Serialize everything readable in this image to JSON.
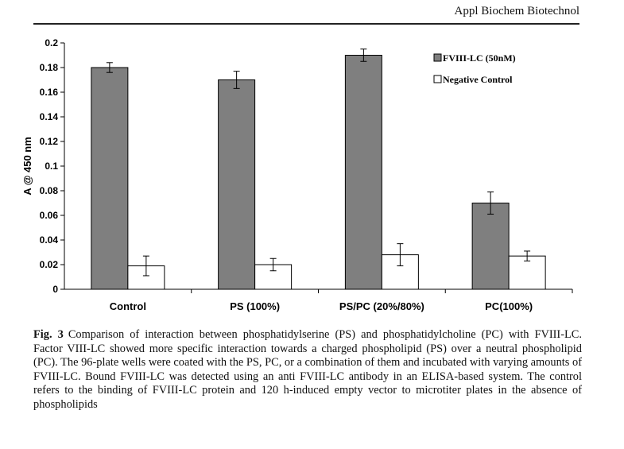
{
  "header": {
    "running_head": "Appl Biochem Biotechnol"
  },
  "chart_data": {
    "type": "bar",
    "categories": [
      "Control",
      "PS (100%)",
      "PS/PC (20%/80%)",
      "PC(100%)"
    ],
    "series": [
      {
        "name": "FVIII-LC (50nM)",
        "values": [
          0.18,
          0.17,
          0.19,
          0.07
        ],
        "errors": [
          0.004,
          0.007,
          0.005,
          0.009
        ],
        "color": "#7f7f7f"
      },
      {
        "name": "Negative Control",
        "values": [
          0.019,
          0.02,
          0.028,
          0.027
        ],
        "errors": [
          0.008,
          0.005,
          0.009,
          0.004
        ],
        "color": "#ffffff"
      }
    ],
    "xlabel": "",
    "ylabel": "A @ 450 nm",
    "ylim": [
      0,
      0.2
    ],
    "yticks": [
      "0",
      "0.02",
      "0.04",
      "0.06",
      "0.08",
      "0.1",
      "0.12",
      "0.14",
      "0.16",
      "0.18",
      "0.2"
    ],
    "grid": false,
    "legend_position": "top-right"
  },
  "caption": {
    "label": "Fig. 3",
    "text": "Comparison of interaction between phosphatidylserine (PS) and phosphatidylcholine (PC) with FVIII-LC. Factor VIII-LC showed more specific interaction towards a charged phospholipid (PS) over a neutral phospholipid (PC). The 96-plate wells were coated with the PS, PC, or a combination of them and incubated with varying amounts of FVIII-LC. Bound FVIII-LC was detected using an anti FVIII-LC antibody in an ELISA-based system. The control refers to the binding of FVIII-LC protein and 120 h-induced empty vector to microtiter plates in the absence of phospholipids"
  }
}
